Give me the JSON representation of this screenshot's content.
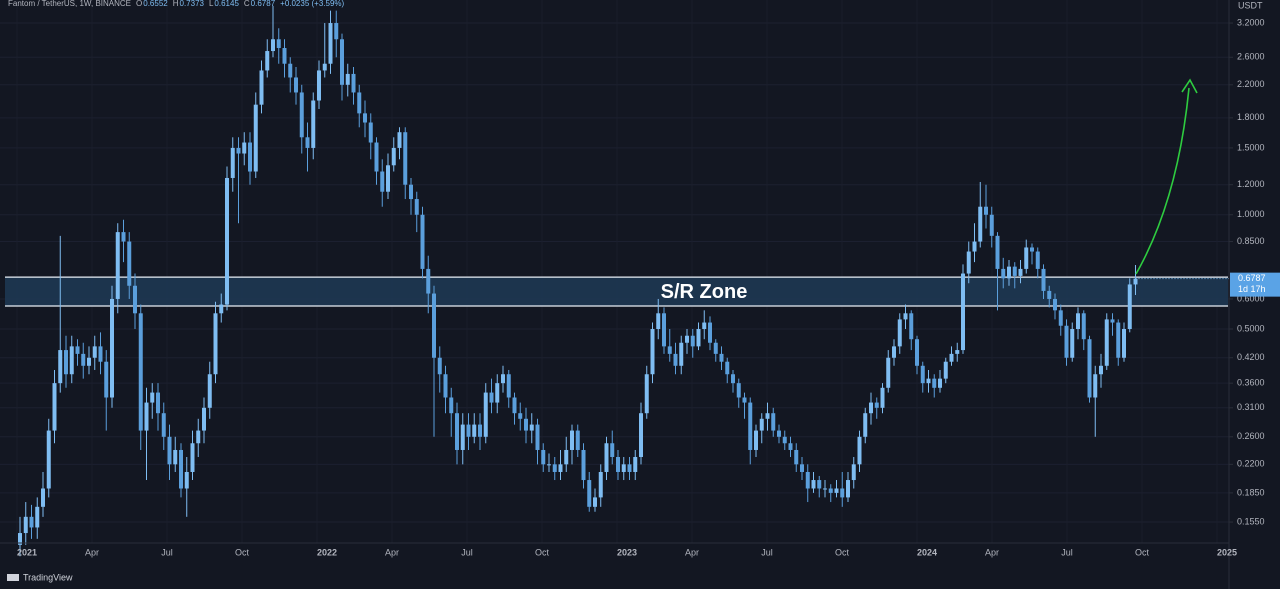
{
  "chart_data": {
    "type": "candlestick",
    "title": "Fantom / TetherUS, 1W, BINANCE",
    "ohlc_labels": [
      "O",
      "H",
      "L",
      "C"
    ],
    "change": "+0.0235 (+3.59%)",
    "y_axis_label": "USDT",
    "countdown": "1d 17h",
    "annotation": "S/R Zone",
    "zone": [
      0.575,
      0.685
    ],
    "logo": "TradingView",
    "log_scale": true,
    "up_color": "#7fbdf2",
    "down_color": "#5b9fdc",
    "ylim": [
      0.1365,
      3.68
    ],
    "yticks": [
      {
        "value": 3.2,
        "label": "3.2000"
      },
      {
        "value": 2.6,
        "label": "2.6000"
      },
      {
        "value": 2.2,
        "label": "2.2000"
      },
      {
        "value": 1.8,
        "label": "1.8000"
      },
      {
        "value": 1.5,
        "label": "1.5000"
      },
      {
        "value": 1.2,
        "label": "1.2000"
      },
      {
        "value": 1,
        "label": "1.0000"
      },
      {
        "value": 0.85,
        "label": "0.8500"
      },
      {
        "value": 0.6,
        "label": "0.6000"
      },
      {
        "value": 0.5,
        "label": "0.5000"
      },
      {
        "value": 0.42,
        "label": "0.4200"
      },
      {
        "value": 0.36,
        "label": "0.3600"
      },
      {
        "value": 0.31,
        "label": "0.3100"
      },
      {
        "value": 0.26,
        "label": "0.2600"
      },
      {
        "value": 0.22,
        "label": "0.2200"
      },
      {
        "value": 0.185,
        "label": "0.1850"
      },
      {
        "value": 0.155,
        "label": "0.1550"
      }
    ],
    "x_labels": [
      "2021",
      "Apr",
      "Jul",
      "Oct",
      "2022",
      "Apr",
      "Jul",
      "Oct",
      "2023",
      "Apr",
      "Jul",
      "Oct",
      "2024",
      "Apr",
      "Jul",
      "Oct",
      "2025"
    ],
    "ohlc": [
      [
        0.135,
        0.16,
        0.126,
        0.145
      ],
      [
        0.145,
        0.175,
        0.135,
        0.16
      ],
      [
        0.16,
        0.172,
        0.14,
        0.15
      ],
      [
        0.15,
        0.18,
        0.14,
        0.17
      ],
      [
        0.17,
        0.21,
        0.16,
        0.19
      ],
      [
        0.19,
        0.29,
        0.18,
        0.27
      ],
      [
        0.27,
        0.39,
        0.25,
        0.36
      ],
      [
        0.36,
        0.88,
        0.34,
        0.44
      ],
      [
        0.44,
        0.48,
        0.35,
        0.38
      ],
      [
        0.38,
        0.48,
        0.36,
        0.45
      ],
      [
        0.45,
        0.47,
        0.4,
        0.43
      ],
      [
        0.43,
        0.46,
        0.37,
        0.4
      ],
      [
        0.4,
        0.45,
        0.38,
        0.42
      ],
      [
        0.42,
        0.48,
        0.39,
        0.45
      ],
      [
        0.45,
        0.49,
        0.38,
        0.41
      ],
      [
        0.41,
        0.44,
        0.27,
        0.33
      ],
      [
        0.33,
        0.65,
        0.31,
        0.6
      ],
      [
        0.6,
        0.95,
        0.55,
        0.9
      ],
      [
        0.9,
        0.97,
        0.75,
        0.85
      ],
      [
        0.85,
        0.9,
        0.6,
        0.65
      ],
      [
        0.65,
        0.7,
        0.5,
        0.55
      ],
      [
        0.55,
        0.58,
        0.24,
        0.27
      ],
      [
        0.27,
        0.35,
        0.2,
        0.32
      ],
      [
        0.32,
        0.36,
        0.29,
        0.34
      ],
      [
        0.34,
        0.36,
        0.27,
        0.3
      ],
      [
        0.3,
        0.32,
        0.24,
        0.26
      ],
      [
        0.26,
        0.28,
        0.2,
        0.22
      ],
      [
        0.22,
        0.26,
        0.21,
        0.24
      ],
      [
        0.24,
        0.25,
        0.18,
        0.19
      ],
      [
        0.19,
        0.23,
        0.16,
        0.21
      ],
      [
        0.21,
        0.27,
        0.2,
        0.25
      ],
      [
        0.25,
        0.29,
        0.23,
        0.27
      ],
      [
        0.27,
        0.33,
        0.25,
        0.31
      ],
      [
        0.31,
        0.41,
        0.29,
        0.38
      ],
      [
        0.38,
        0.59,
        0.36,
        0.55
      ],
      [
        0.55,
        0.62,
        0.52,
        0.58
      ],
      [
        0.58,
        1.34,
        0.56,
        1.25
      ],
      [
        1.25,
        1.6,
        1.15,
        1.5
      ],
      [
        1.5,
        1.6,
        0.95,
        1.45
      ],
      [
        1.45,
        1.65,
        1.35,
        1.55
      ],
      [
        1.55,
        1.65,
        1.2,
        1.3
      ],
      [
        1.3,
        2.1,
        1.25,
        1.95
      ],
      [
        1.95,
        2.55,
        1.85,
        2.4
      ],
      [
        2.4,
        2.9,
        2.3,
        2.7
      ],
      [
        2.7,
        3.55,
        2.6,
        2.9
      ],
      [
        2.9,
        3.1,
        2.5,
        2.75
      ],
      [
        2.75,
        2.9,
        2.3,
        2.5
      ],
      [
        2.5,
        2.6,
        2.1,
        2.3
      ],
      [
        2.3,
        2.45,
        1.95,
        2.1
      ],
      [
        2.1,
        2.2,
        1.45,
        1.6
      ],
      [
        1.6,
        1.75,
        1.3,
        1.5
      ],
      [
        1.5,
        2.1,
        1.4,
        2
      ],
      [
        2,
        2.55,
        1.9,
        2.4
      ],
      [
        2.4,
        3.2,
        2.3,
        2.5
      ],
      [
        2.5,
        3.45,
        2.35,
        3.2
      ],
      [
        3.2,
        3.45,
        2.6,
        2.9
      ],
      [
        2.9,
        3,
        2,
        2.2
      ],
      [
        2.2,
        2.5,
        2.05,
        2.35
      ],
      [
        2.35,
        2.45,
        1.95,
        2.1
      ],
      [
        2.1,
        2.2,
        1.7,
        1.85
      ],
      [
        1.85,
        2,
        1.6,
        1.75
      ],
      [
        1.75,
        1.85,
        1.4,
        1.55
      ],
      [
        1.55,
        1.6,
        1.2,
        1.3
      ],
      [
        1.3,
        1.4,
        1.05,
        1.15
      ],
      [
        1.15,
        1.45,
        1.1,
        1.35
      ],
      [
        1.35,
        1.6,
        1.3,
        1.5
      ],
      [
        1.5,
        1.7,
        1.4,
        1.65
      ],
      [
        1.65,
        1.7,
        1.1,
        1.2
      ],
      [
        1.2,
        1.25,
        1,
        1.1
      ],
      [
        1.1,
        1.15,
        0.9,
        1
      ],
      [
        1,
        1.05,
        0.68,
        0.72
      ],
      [
        0.72,
        0.78,
        0.55,
        0.62
      ],
      [
        0.62,
        0.65,
        0.26,
        0.42
      ],
      [
        0.42,
        0.45,
        0.34,
        0.38
      ],
      [
        0.38,
        0.4,
        0.3,
        0.33
      ],
      [
        0.33,
        0.35,
        0.26,
        0.3
      ],
      [
        0.3,
        0.32,
        0.22,
        0.24
      ],
      [
        0.24,
        0.3,
        0.22,
        0.28
      ],
      [
        0.28,
        0.3,
        0.24,
        0.26
      ],
      [
        0.26,
        0.3,
        0.25,
        0.28
      ],
      [
        0.28,
        0.3,
        0.24,
        0.26
      ],
      [
        0.26,
        0.36,
        0.25,
        0.34
      ],
      [
        0.34,
        0.37,
        0.3,
        0.32
      ],
      [
        0.32,
        0.38,
        0.3,
        0.36
      ],
      [
        0.36,
        0.4,
        0.34,
        0.38
      ],
      [
        0.38,
        0.39,
        0.31,
        0.33
      ],
      [
        0.33,
        0.34,
        0.28,
        0.3
      ],
      [
        0.3,
        0.32,
        0.27,
        0.29
      ],
      [
        0.29,
        0.31,
        0.25,
        0.27
      ],
      [
        0.27,
        0.3,
        0.25,
        0.28
      ],
      [
        0.28,
        0.29,
        0.22,
        0.24
      ],
      [
        0.24,
        0.25,
        0.21,
        0.22
      ],
      [
        0.22,
        0.235,
        0.21,
        0.22
      ],
      [
        0.22,
        0.23,
        0.2,
        0.21
      ],
      [
        0.21,
        0.24,
        0.2,
        0.22
      ],
      [
        0.22,
        0.26,
        0.21,
        0.24
      ],
      [
        0.24,
        0.28,
        0.22,
        0.27
      ],
      [
        0.27,
        0.28,
        0.23,
        0.24
      ],
      [
        0.24,
        0.25,
        0.19,
        0.2
      ],
      [
        0.2,
        0.21,
        0.165,
        0.17
      ],
      [
        0.17,
        0.19,
        0.165,
        0.18
      ],
      [
        0.18,
        0.22,
        0.17,
        0.21
      ],
      [
        0.21,
        0.26,
        0.2,
        0.25
      ],
      [
        0.25,
        0.27,
        0.22,
        0.23
      ],
      [
        0.23,
        0.24,
        0.2,
        0.21
      ],
      [
        0.21,
        0.23,
        0.2,
        0.22
      ],
      [
        0.22,
        0.23,
        0.2,
        0.21
      ],
      [
        0.21,
        0.24,
        0.2,
        0.23
      ],
      [
        0.23,
        0.32,
        0.22,
        0.3
      ],
      [
        0.3,
        0.4,
        0.29,
        0.38
      ],
      [
        0.38,
        0.52,
        0.36,
        0.5
      ],
      [
        0.5,
        0.6,
        0.47,
        0.55
      ],
      [
        0.55,
        0.57,
        0.43,
        0.45
      ],
      [
        0.45,
        0.5,
        0.41,
        0.43
      ],
      [
        0.43,
        0.46,
        0.38,
        0.4
      ],
      [
        0.4,
        0.48,
        0.38,
        0.46
      ],
      [
        0.46,
        0.5,
        0.43,
        0.48
      ],
      [
        0.48,
        0.5,
        0.42,
        0.45
      ],
      [
        0.45,
        0.52,
        0.44,
        0.5
      ],
      [
        0.5,
        0.56,
        0.47,
        0.52
      ],
      [
        0.52,
        0.54,
        0.44,
        0.46
      ],
      [
        0.46,
        0.47,
        0.41,
        0.43
      ],
      [
        0.43,
        0.45,
        0.39,
        0.41
      ],
      [
        0.41,
        0.42,
        0.36,
        0.38
      ],
      [
        0.38,
        0.39,
        0.34,
        0.36
      ],
      [
        0.36,
        0.37,
        0.31,
        0.33
      ],
      [
        0.33,
        0.34,
        0.29,
        0.32
      ],
      [
        0.32,
        0.33,
        0.22,
        0.24
      ],
      [
        0.24,
        0.28,
        0.23,
        0.27
      ],
      [
        0.27,
        0.3,
        0.25,
        0.29
      ],
      [
        0.29,
        0.32,
        0.27,
        0.3
      ],
      [
        0.3,
        0.31,
        0.26,
        0.27
      ],
      [
        0.27,
        0.28,
        0.25,
        0.26
      ],
      [
        0.26,
        0.27,
        0.24,
        0.25
      ],
      [
        0.25,
        0.26,
        0.23,
        0.24
      ],
      [
        0.24,
        0.25,
        0.21,
        0.22
      ],
      [
        0.22,
        0.23,
        0.2,
        0.21
      ],
      [
        0.21,
        0.22,
        0.175,
        0.19
      ],
      [
        0.19,
        0.21,
        0.185,
        0.2
      ],
      [
        0.2,
        0.205,
        0.18,
        0.19
      ],
      [
        0.19,
        0.2,
        0.18,
        0.19
      ],
      [
        0.19,
        0.195,
        0.175,
        0.185
      ],
      [
        0.185,
        0.2,
        0.18,
        0.19
      ],
      [
        0.19,
        0.21,
        0.17,
        0.18
      ],
      [
        0.18,
        0.21,
        0.175,
        0.2
      ],
      [
        0.2,
        0.23,
        0.19,
        0.22
      ],
      [
        0.22,
        0.27,
        0.21,
        0.26
      ],
      [
        0.26,
        0.31,
        0.25,
        0.3
      ],
      [
        0.3,
        0.34,
        0.28,
        0.32
      ],
      [
        0.32,
        0.33,
        0.29,
        0.31
      ],
      [
        0.31,
        0.36,
        0.3,
        0.35
      ],
      [
        0.35,
        0.44,
        0.34,
        0.42
      ],
      [
        0.42,
        0.47,
        0.4,
        0.45
      ],
      [
        0.45,
        0.55,
        0.43,
        0.53
      ],
      [
        0.53,
        0.58,
        0.5,
        0.55
      ],
      [
        0.55,
        0.56,
        0.44,
        0.47
      ],
      [
        0.47,
        0.48,
        0.38,
        0.4
      ],
      [
        0.4,
        0.41,
        0.34,
        0.36
      ],
      [
        0.36,
        0.39,
        0.34,
        0.37
      ],
      [
        0.37,
        0.38,
        0.33,
        0.35
      ],
      [
        0.35,
        0.39,
        0.34,
        0.37
      ],
      [
        0.37,
        0.42,
        0.36,
        0.41
      ],
      [
        0.41,
        0.45,
        0.4,
        0.43
      ],
      [
        0.43,
        0.46,
        0.41,
        0.44
      ],
      [
        0.44,
        0.74,
        0.43,
        0.7
      ],
      [
        0.7,
        0.85,
        0.66,
        0.8
      ],
      [
        0.8,
        0.95,
        0.75,
        0.85
      ],
      [
        0.85,
        1.22,
        0.82,
        1.05
      ],
      [
        1.05,
        1.2,
        0.92,
        1
      ],
      [
        1,
        1.05,
        0.82,
        0.88
      ],
      [
        0.88,
        0.9,
        0.56,
        0.72
      ],
      [
        0.72,
        0.77,
        0.64,
        0.68
      ],
      [
        0.68,
        0.76,
        0.65,
        0.73
      ],
      [
        0.73,
        0.75,
        0.64,
        0.69
      ],
      [
        0.69,
        0.76,
        0.66,
        0.72
      ],
      [
        0.72,
        0.86,
        0.7,
        0.82
      ],
      [
        0.82,
        0.84,
        0.74,
        0.8
      ],
      [
        0.8,
        0.82,
        0.68,
        0.72
      ],
      [
        0.72,
        0.74,
        0.6,
        0.63
      ],
      [
        0.63,
        0.65,
        0.57,
        0.6
      ],
      [
        0.6,
        0.62,
        0.53,
        0.56
      ],
      [
        0.56,
        0.58,
        0.48,
        0.51
      ],
      [
        0.51,
        0.53,
        0.4,
        0.42
      ],
      [
        0.42,
        0.52,
        0.41,
        0.5
      ],
      [
        0.5,
        0.57,
        0.47,
        0.55
      ],
      [
        0.55,
        0.56,
        0.44,
        0.47
      ],
      [
        0.47,
        0.48,
        0.32,
        0.33
      ],
      [
        0.33,
        0.4,
        0.26,
        0.38
      ],
      [
        0.38,
        0.43,
        0.35,
        0.4
      ],
      [
        0.4,
        0.55,
        0.39,
        0.53
      ],
      [
        0.53,
        0.55,
        0.48,
        0.52
      ],
      [
        0.52,
        0.53,
        0.4,
        0.42
      ],
      [
        0.42,
        0.52,
        0.41,
        0.5
      ],
      [
        0.5,
        0.68,
        0.49,
        0.6552
      ],
      [
        0.6552,
        0.7373,
        0.6145,
        0.6787
      ]
    ]
  }
}
